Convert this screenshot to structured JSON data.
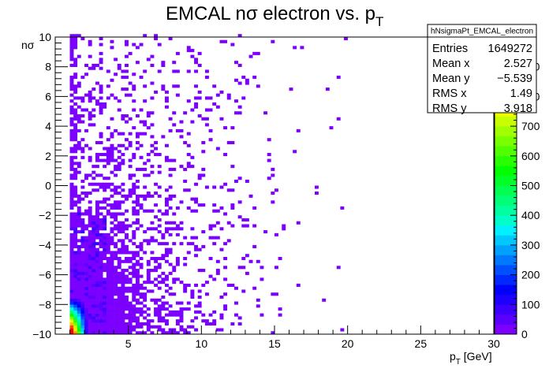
{
  "chart_data": {
    "type": "heatmap",
    "title_main": "EMCAL nσ electron vs. p",
    "title_sub": "T",
    "xlabel_main": "p",
    "xlabel_sub": "T",
    "xlabel_unit": " [GeV]",
    "ylabel": "nσ",
    "xlim": [
      0,
      30
    ],
    "ylim": [
      -10,
      10
    ],
    "x_ticks": [
      "5",
      "10",
      "15",
      "20",
      "25",
      "30"
    ],
    "y_ticks": [
      "−10",
      "−8",
      "−6",
      "−4",
      "−2",
      "0",
      "2",
      "4",
      "6",
      "8",
      "10"
    ],
    "z_ticks": [
      "0",
      "100",
      "200",
      "300",
      "400",
      "500",
      "600",
      "700"
    ],
    "z_ticks_hidden": [
      "800",
      "900"
    ],
    "zlim": [
      0,
      1000
    ],
    "palette": [
      "#7B00FF",
      "#5A00FF",
      "#3C00FF",
      "#1E00FF",
      "#0000FF",
      "#0028FF",
      "#0050FF",
      "#0078FF",
      "#00A0FF",
      "#00C8FF",
      "#00F0FF",
      "#00FFC8",
      "#00FFA0",
      "#00FF78",
      "#00FF50",
      "#00FF28",
      "#00FF00",
      "#28FF00",
      "#50FF00",
      "#78FF00",
      "#A0FF00",
      "#C8FF00",
      "#F0FF00",
      "#FFE600",
      "#FFBE00",
      "#FF9600",
      "#FF6E00",
      "#FF4600",
      "#FF1E00",
      "#FF0000"
    ],
    "distribution": {
      "description_hidden": "",
      "x_min_populated": 1.0,
      "x_max_populated": 20.0
    },
    "stats": {
      "name": "hNsigmaPt_EMCAL_electron",
      "rows": [
        {
          "label": "Entries",
          "value": "1649272"
        },
        {
          "label": "Mean x",
          "value": "2.527"
        },
        {
          "label": "Mean y",
          "value": "−5.539"
        },
        {
          "label": "RMS x",
          "value": "1.49"
        },
        {
          "label": "RMS y",
          "value": "3.918"
        }
      ]
    }
  }
}
